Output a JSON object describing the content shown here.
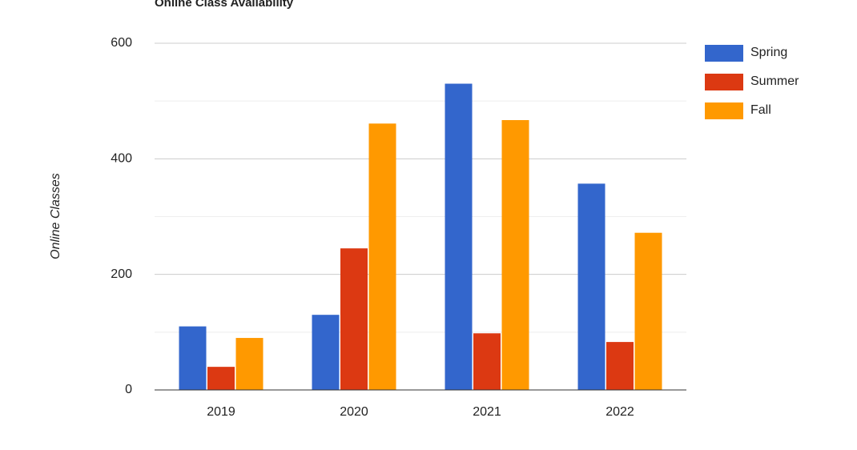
{
  "chart_data": {
    "type": "bar",
    "title": "Online Class Availability",
    "y_label": "Online Classes",
    "categories": [
      "2019",
      "2020",
      "2021",
      "2022"
    ],
    "series": [
      {
        "name": "Spring",
        "color": "#3366cc",
        "values": [
          110,
          130,
          530,
          357
        ]
      },
      {
        "name": "Summer",
        "color": "#dc3912",
        "values": [
          40,
          245,
          98,
          83
        ]
      },
      {
        "name": "Fall",
        "color": "#ff9900",
        "values": [
          90,
          461,
          467,
          272
        ]
      }
    ],
    "ylim": [
      0,
      600
    ],
    "yticks": [
      0,
      200,
      400,
      600
    ],
    "grid": true,
    "legend": "right"
  }
}
